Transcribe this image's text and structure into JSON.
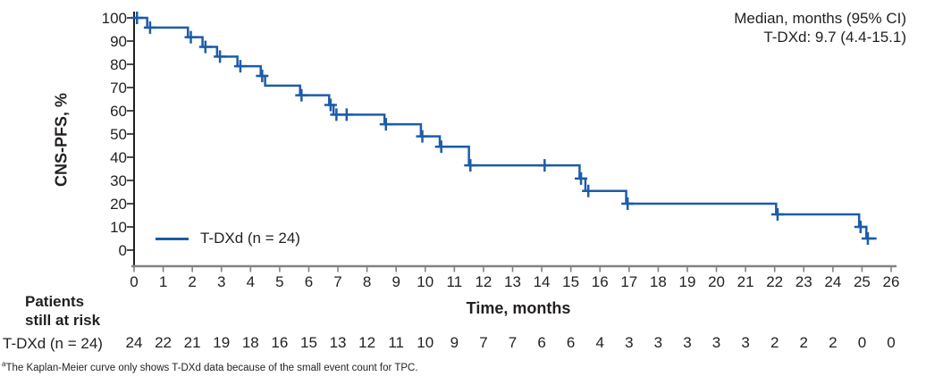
{
  "footnote": {
    "marker": "a",
    "text": "The Kaplan-Meier curve only shows T-DXd data because of the small event count for TPC."
  },
  "chart_data": {
    "type": "line",
    "subtype": "kaplan-meier-step-curve",
    "annotation_line1": "Median, months (95% CI)",
    "annotation_line2": "T-DXd: 9.7 (4.4-15.1)",
    "xlabel": "Time, months",
    "ylabel": "CNS-PFS, %",
    "xlim": [
      0,
      26
    ],
    "ylim": [
      0,
      100
    ],
    "grid": false,
    "legend_position": "lower-left-inside",
    "x_ticks": [
      0,
      1,
      2,
      3,
      4,
      5,
      6,
      7,
      8,
      9,
      10,
      11,
      12,
      13,
      14,
      15,
      16,
      17,
      18,
      19,
      20,
      21,
      22,
      23,
      24,
      25,
      26
    ],
    "y_ticks": [
      0,
      10,
      20,
      30,
      40,
      50,
      60,
      70,
      80,
      90,
      100
    ],
    "colors": {
      "line": "#1c5ca8",
      "x_axis": "#808285",
      "y_axis": "#231f20",
      "text": "#231f20"
    },
    "series": [
      {
        "name": "T-DXd (n = 24)",
        "steps": [
          [
            0,
            100
          ],
          [
            0.45,
            95.8
          ],
          [
            1.85,
            91.7
          ],
          [
            2.35,
            87.5
          ],
          [
            2.85,
            83.3
          ],
          [
            3.55,
            79.2
          ],
          [
            4.35,
            75
          ],
          [
            4.5,
            70.8
          ],
          [
            5.7,
            66.7
          ],
          [
            6.7,
            62.5
          ],
          [
            6.85,
            58.3
          ],
          [
            8.6,
            54.2
          ],
          [
            9.85,
            49
          ],
          [
            10.5,
            44.5
          ],
          [
            11.5,
            36.5
          ],
          [
            15.3,
            30.8
          ],
          [
            15.5,
            25.5
          ],
          [
            16.9,
            20
          ],
          [
            22.05,
            15.4
          ],
          [
            24.9,
            10
          ],
          [
            25.15,
            5
          ]
        ],
        "end_x": 25.5,
        "censor_marks": [
          [
            0.1,
            100
          ],
          [
            0.55,
            95.8
          ],
          [
            1.95,
            91.7
          ],
          [
            2.45,
            87.5
          ],
          [
            2.95,
            83.3
          ],
          [
            3.65,
            79.2
          ],
          [
            4.4,
            75
          ],
          [
            5.75,
            66.7
          ],
          [
            6.75,
            62.5
          ],
          [
            6.95,
            58.3
          ],
          [
            7.3,
            58.3
          ],
          [
            8.65,
            54.2
          ],
          [
            9.9,
            49
          ],
          [
            10.55,
            44.5
          ],
          [
            11.55,
            36.5
          ],
          [
            14.1,
            36.5
          ],
          [
            15.35,
            30.8
          ],
          [
            15.6,
            25.5
          ],
          [
            16.95,
            20
          ],
          [
            22.1,
            15.4
          ],
          [
            24.95,
            10
          ],
          [
            25.2,
            5
          ]
        ]
      }
    ],
    "at_risk": {
      "header_line1": "Patients",
      "header_line2": "still at risk",
      "row_label": "T-DXd (n = 24)",
      "values": [
        24,
        22,
        21,
        19,
        18,
        16,
        15,
        13,
        12,
        11,
        10,
        9,
        7,
        7,
        6,
        6,
        4,
        3,
        3,
        3,
        3,
        3,
        2,
        2,
        2,
        0,
        0
      ]
    }
  }
}
